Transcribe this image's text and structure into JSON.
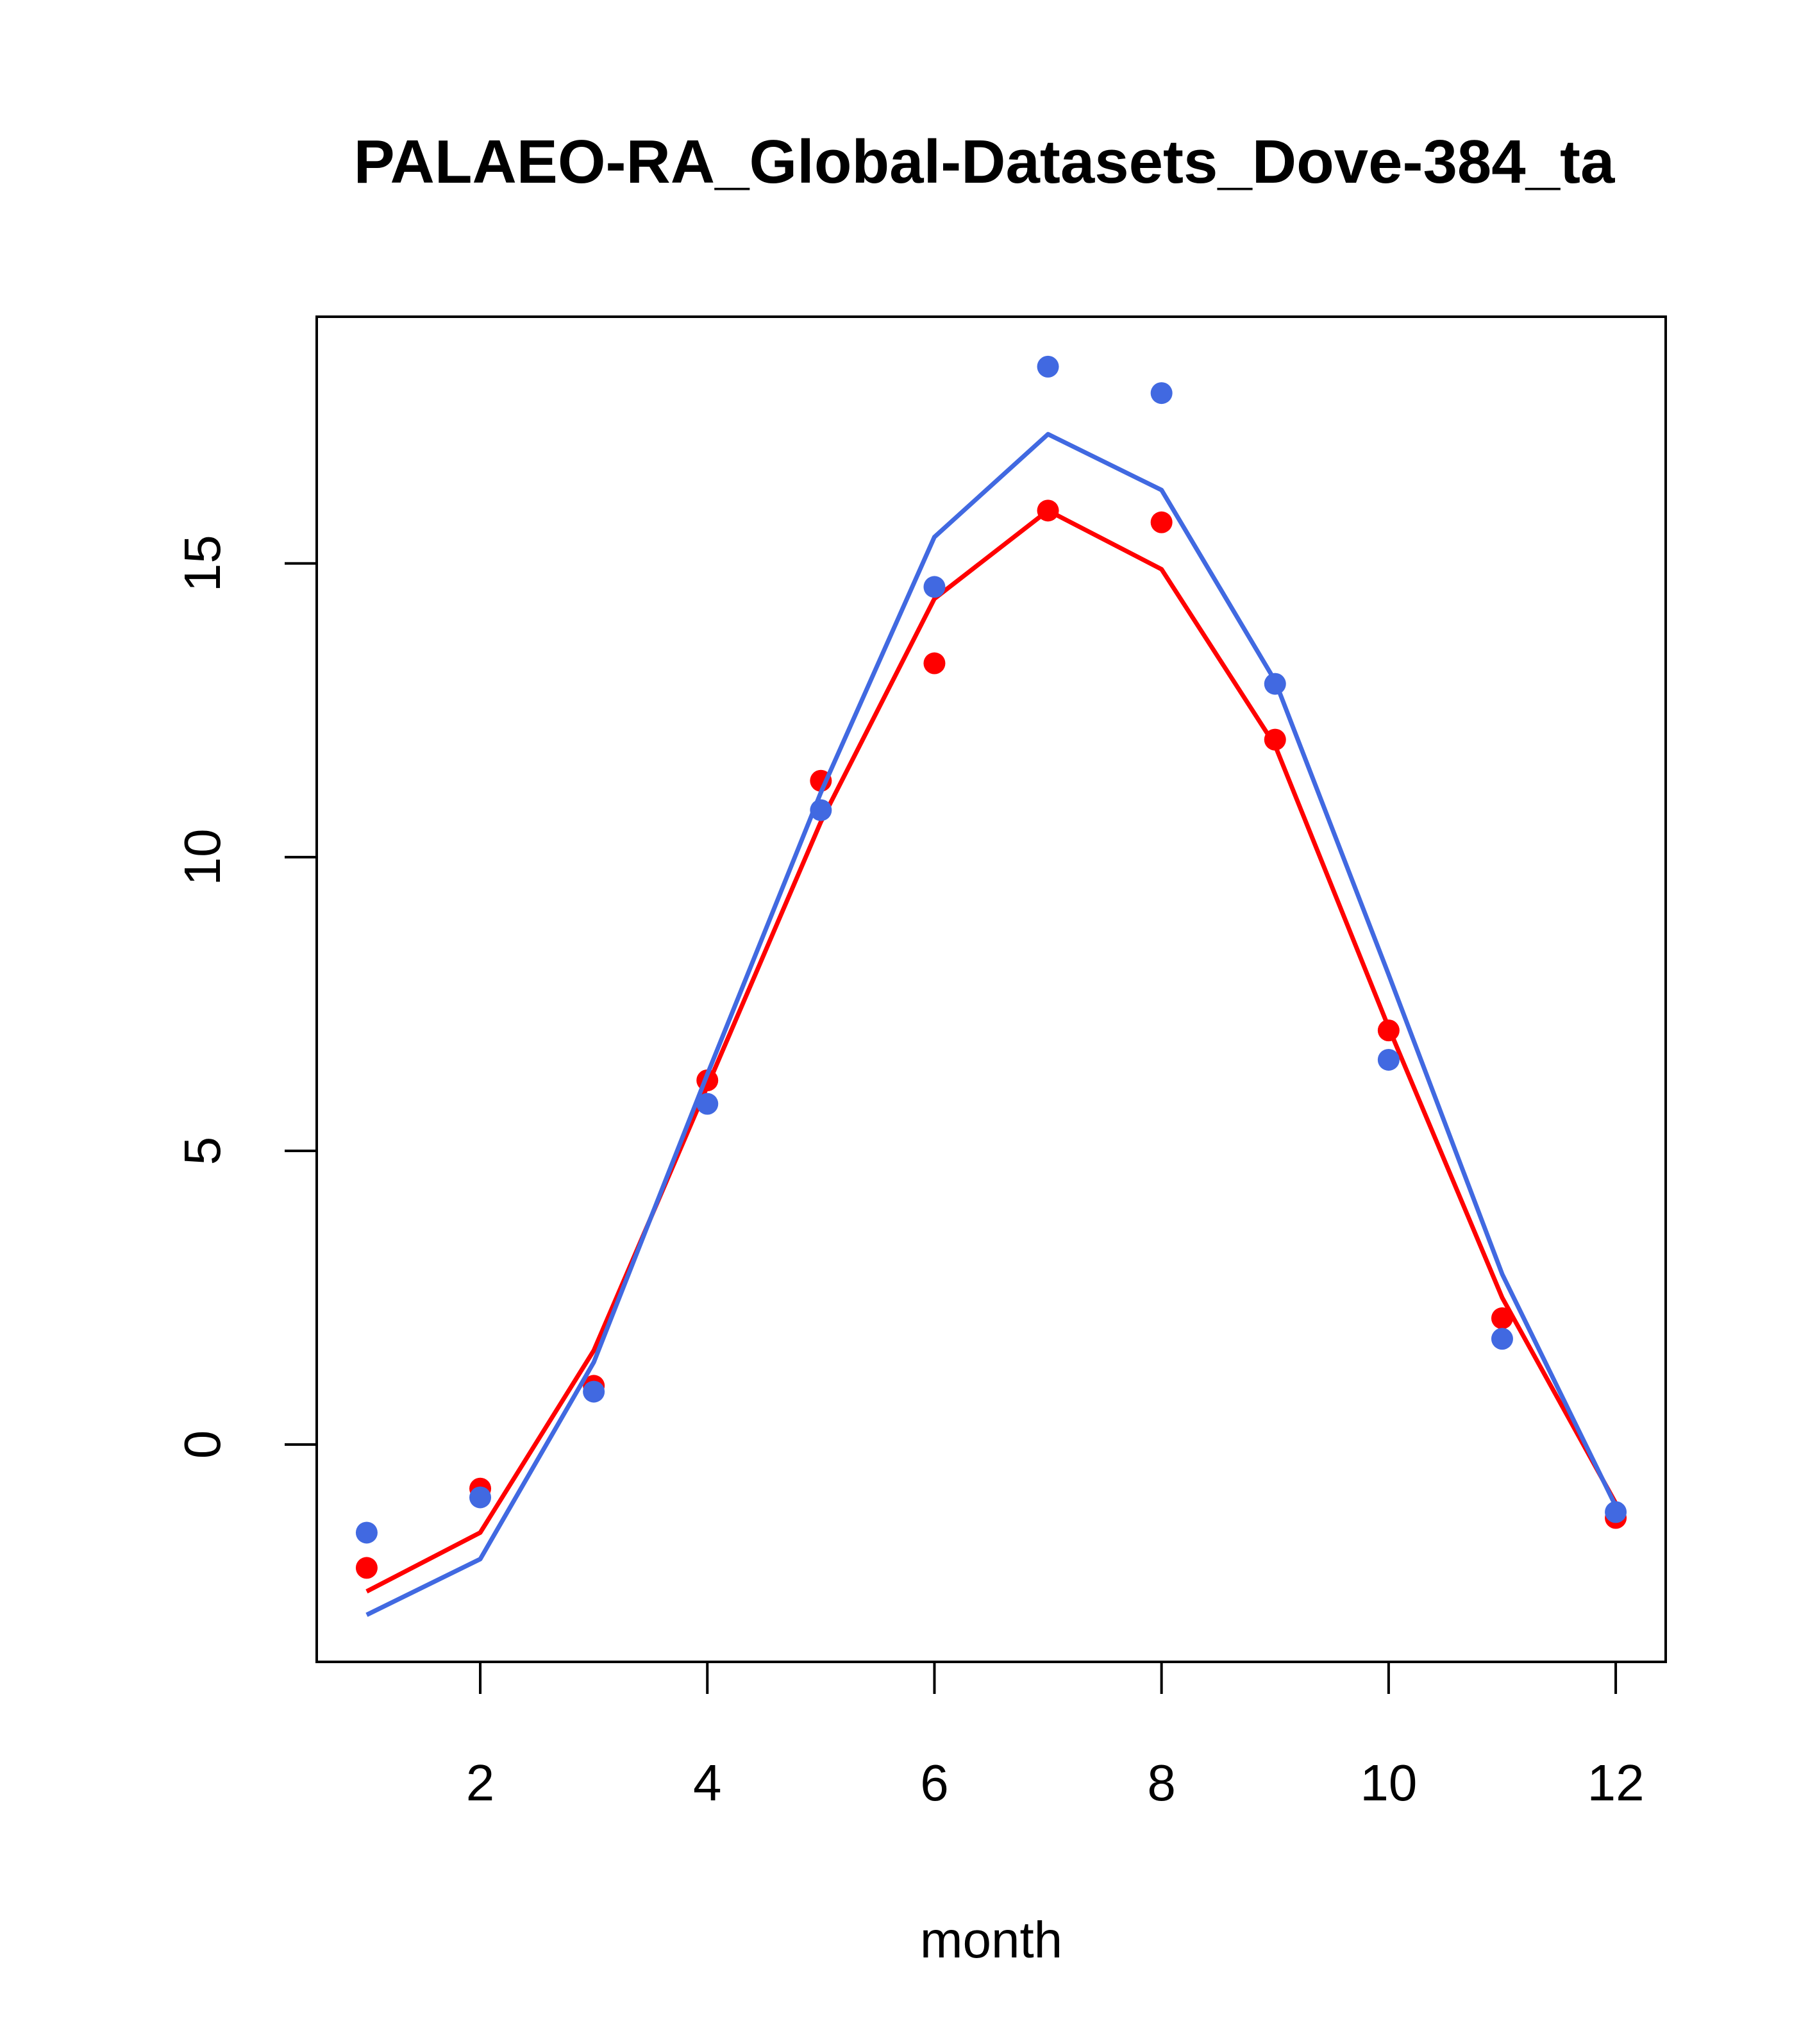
{
  "chart_data": {
    "type": "line",
    "title": "PALAEO-RA_Global-Datasets_Dove-384_ta",
    "xlabel": "month",
    "ylabel": "",
    "xlim": [
      0.56,
      12.44
    ],
    "ylim": [
      -3.7,
      19.2
    ],
    "x_ticks": [
      2,
      4,
      6,
      8,
      10,
      12
    ],
    "y_ticks": [
      0,
      5,
      10,
      15
    ],
    "grid": false,
    "legend": "none",
    "x": [
      1,
      2,
      3,
      4,
      5,
      6,
      7,
      8,
      9,
      10,
      11,
      12
    ],
    "series": [
      {
        "color": "#FF0000",
        "line": [
          -2.5,
          -1.5,
          1.6,
          6.1,
          10.6,
          14.4,
          15.9,
          14.9,
          11.9,
          7.1,
          2.5,
          -1.0
        ],
        "points": [
          -2.1,
          -0.75,
          1.0,
          6.2,
          11.3,
          13.3,
          15.9,
          15.7,
          12.0,
          7.05,
          2.15,
          -1.25
        ]
      },
      {
        "color": "#4169E1",
        "line": [
          -2.9,
          -1.95,
          1.4,
          6.3,
          11.1,
          15.45,
          17.2,
          16.25,
          13.0,
          8.0,
          2.9,
          -1.05
        ],
        "points": [
          -1.5,
          -0.9,
          0.9,
          5.8,
          10.8,
          14.6,
          18.35,
          17.9,
          12.95,
          6.55,
          1.8,
          -1.15
        ]
      }
    ]
  }
}
